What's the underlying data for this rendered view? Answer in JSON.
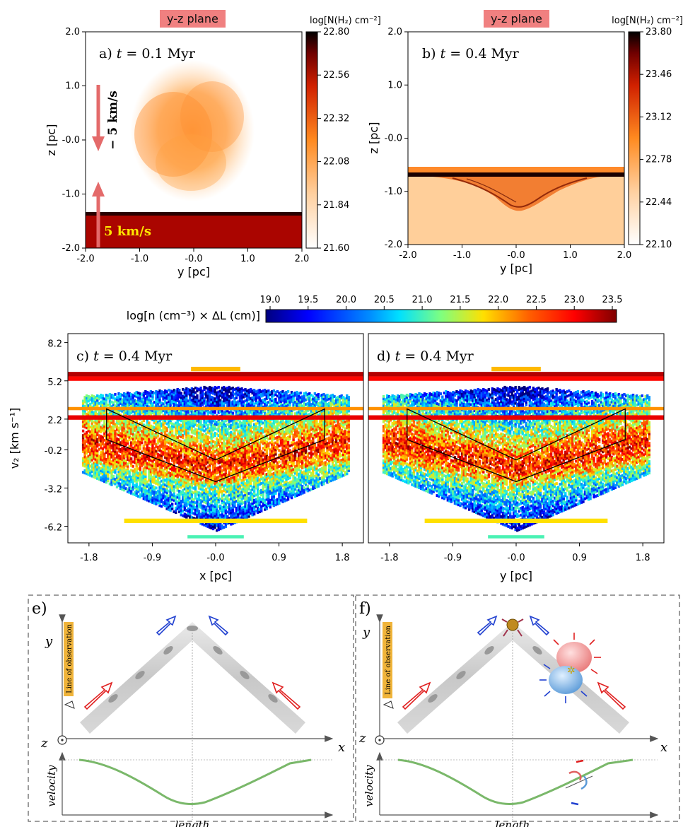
{
  "chart_data": [
    {
      "type": "heatmap",
      "panel": "a",
      "tag": "y-z plane",
      "label_letter": "a)",
      "label_t": "t",
      "label_rest": " = 0.1 Myr",
      "xlabel": "y [pc]",
      "ylabel": "z [pc]",
      "xlim": [
        -2.0,
        2.0
      ],
      "ylim": [
        -2.0,
        2.0
      ],
      "xticks": [
        "-2.0",
        "-1.0",
        "-0.0",
        "1.0",
        "2.0"
      ],
      "yticks": [
        "2.0",
        "1.0",
        "-0.0",
        "-1.0",
        "-2.0"
      ],
      "colorbar_label": "log[N(H₂) cm⁻²]",
      "colorbar_ticks": [
        "22.80",
        "22.56",
        "22.32",
        "22.08",
        "21.84",
        "21.60"
      ],
      "arrow_down_label": "− 5 km/s",
      "arrow_up_label": "5 km/s"
    },
    {
      "type": "heatmap",
      "panel": "b",
      "tag": "y-z plane",
      "label_letter": "b)",
      "label_t": "t",
      "label_rest": " = 0.4 Myr",
      "xlabel": "y [pc]",
      "ylabel": "z [pc]",
      "xlim": [
        -2.0,
        2.0
      ],
      "ylim": [
        -2.0,
        2.0
      ],
      "xticks": [
        "-2.0",
        "-1.0",
        "-0.0",
        "1.0",
        "2.0"
      ],
      "yticks": [
        "2.0",
        "1.0",
        "-0.0",
        "-1.0",
        "-2.0"
      ],
      "colorbar_label": "log[N(H₂) cm⁻²]",
      "colorbar_ticks": [
        "23.80",
        "23.46",
        "23.12",
        "22.78",
        "22.44",
        "22.10"
      ]
    },
    {
      "type": "heatmap",
      "panel": "c",
      "label_letter": "c)",
      "label_t": "t",
      "label_rest": " = 0.4 Myr",
      "xlabel": "x [pc]",
      "ylabel": "v₂ [km s⁻¹]",
      "xticks": [
        "-1.8",
        "-0.9",
        "-0.0",
        "0.9",
        "1.8"
      ],
      "yticks": [
        "8.2",
        "5.2",
        "2.2",
        "-0.2",
        "-3.2",
        "-6.2"
      ]
    },
    {
      "type": "heatmap",
      "panel": "d",
      "label_letter": "d)",
      "label_t": "t",
      "label_rest": " = 0.4 Myr",
      "xlabel": "y [pc]",
      "xticks": [
        "-1.8",
        "-0.9",
        "-0.0",
        "0.9",
        "1.8"
      ]
    }
  ],
  "shared_colorbar": {
    "label": "log[n (cm⁻³) × ΔL (cm)]",
    "ticks": [
      "19.0",
      "19.5",
      "20.0",
      "20.5",
      "21.0",
      "21.5",
      "22.0",
      "22.5",
      "23.0",
      "23.5"
    ]
  },
  "diagrams": {
    "e": {
      "letter": "e)",
      "y": "y",
      "z": "z",
      "x": "x",
      "line_of_observation": "Line of observation",
      "velocity": "velocity",
      "length": "length"
    },
    "f": {
      "letter": "f)",
      "y": "y",
      "z": "z",
      "x": "x",
      "line_of_observation": "Line of observation",
      "velocity": "velocity",
      "length": "length"
    }
  },
  "colors": {
    "tag_bg": "#f08080",
    "filament_red": "#e02020",
    "filament_blue": "#2040d0",
    "curve_green": "#7ab86a"
  }
}
